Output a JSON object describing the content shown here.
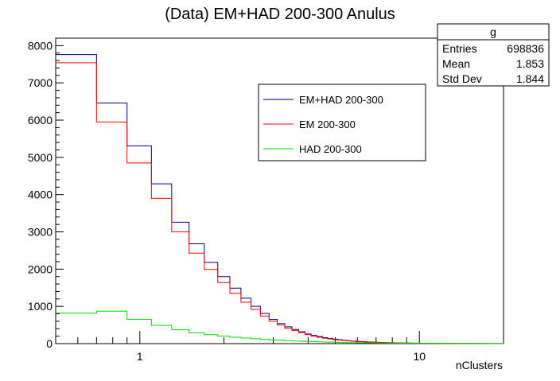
{
  "chart_data": {
    "type": "line",
    "title": "(Data) EM+HAD 200-300 Anulus",
    "xlabel": "nClusters",
    "ylabel": "",
    "x_scale": "log",
    "xlim": [
      0.5,
      20
    ],
    "ylim": [
      0,
      8200
    ],
    "y_ticks": [
      0,
      1000,
      2000,
      3000,
      4000,
      5000,
      6000,
      7000,
      8000
    ],
    "x_ticks": [
      1,
      10
    ],
    "x_tick_labels": [
      "1",
      "10"
    ],
    "bin_edges": [
      0.5,
      0.7,
      0.9,
      1.1,
      1.3,
      1.5,
      1.7,
      1.9,
      2.1,
      2.3,
      2.5,
      2.7,
      2.9,
      3.1,
      3.3,
      3.5,
      3.7,
      3.9,
      4.1,
      4.3,
      4.5,
      4.7,
      4.9,
      5.1,
      5.3,
      5.5,
      5.7,
      5.9,
      6.1,
      6.3,
      6.5,
      6.7,
      6.9,
      7.1,
      7.3,
      7.5,
      7.7,
      7.9,
      8.1,
      8.3,
      8.5,
      8.7,
      8.9,
      9.1,
      9.3,
      9.5,
      9.7,
      9.9,
      10.1,
      10.3,
      10.5,
      10.7,
      10.9,
      11.1,
      11.3,
      11.5,
      11.7,
      11.9,
      12.1,
      12.3,
      12.5,
      12.7,
      12.9,
      13.1,
      13.3,
      13.5,
      13.7,
      13.9,
      14.1,
      14.3,
      14.5,
      14.7,
      14.9,
      15.1,
      15.3,
      15.5,
      15.7,
      15.9,
      16.1,
      16.3,
      16.5,
      16.7,
      16.9,
      17.1,
      17.3,
      17.5,
      17.7,
      17.9,
      18.1,
      18.3,
      18.5,
      18.7,
      18.9,
      19.1,
      19.3,
      19.5,
      19.7,
      19.9,
      20.1
    ],
    "series": [
      {
        "name": "EM+HAD 200-300",
        "color": "#000080",
        "values": [
          7760,
          6460,
          5310,
          4290,
          3260,
          2680,
          2180,
          1800,
          1490,
          1220,
          1000,
          810,
          650,
          540,
          450,
          380,
          320,
          260,
          220,
          190,
          160,
          140,
          120,
          105,
          90,
          80,
          70,
          62,
          55,
          50,
          45,
          40,
          36,
          33,
          30,
          27,
          25,
          23,
          21,
          19,
          18,
          17,
          16,
          15,
          14,
          14,
          13,
          13,
          12,
          12,
          11,
          11,
          10,
          10,
          10,
          9,
          9,
          9,
          8,
          8,
          8,
          8,
          7,
          7,
          7,
          7,
          6,
          6,
          6,
          6,
          6,
          5,
          5,
          5,
          5,
          5,
          5,
          4,
          4,
          4,
          4,
          4,
          4,
          4,
          3,
          3,
          3,
          3,
          3,
          3,
          3,
          3,
          3,
          2,
          2,
          2,
          2,
          2
        ]
      },
      {
        "name": "EM 200-300",
        "color": "#ff0000",
        "values": [
          7540,
          5950,
          4850,
          3900,
          3000,
          2430,
          1990,
          1640,
          1350,
          1110,
          920,
          740,
          600,
          500,
          410,
          350,
          290,
          240,
          200,
          170,
          145,
          125,
          108,
          94,
          82,
          72,
          64,
          57,
          50,
          45,
          41,
          37,
          33,
          30,
          27,
          25,
          23,
          21,
          19,
          17,
          16,
          15,
          14,
          14,
          13,
          12,
          12,
          11,
          11,
          10,
          10,
          9,
          9,
          9,
          8,
          8,
          8,
          7,
          7,
          7,
          7,
          6,
          6,
          6,
          6,
          6,
          5,
          5,
          5,
          5,
          5,
          4,
          4,
          4,
          4,
          4,
          4,
          4,
          3,
          3,
          3,
          3,
          3,
          3,
          3,
          3,
          2,
          2,
          2,
          2,
          2,
          2,
          2,
          2,
          2,
          2,
          2,
          2
        ]
      },
      {
        "name": "HAD 200-300",
        "color": "#00dd00",
        "values": [
          820,
          870,
          650,
          490,
          370,
          290,
          240,
          200,
          170,
          150,
          130,
          115,
          100,
          90,
          80,
          72,
          65,
          58,
          52,
          47,
          43,
          39,
          36,
          33,
          30,
          28,
          26,
          24,
          22,
          21,
          20,
          19,
          18,
          17,
          16,
          15,
          14,
          14,
          13,
          12,
          12,
          11,
          11,
          10,
          10,
          10,
          9,
          9,
          9,
          8,
          8,
          8,
          8,
          7,
          7,
          7,
          7,
          6,
          6,
          6,
          6,
          6,
          5,
          5,
          5,
          5,
          5,
          5,
          4,
          4,
          4,
          4,
          4,
          4,
          4,
          3,
          3,
          3,
          3,
          3,
          3,
          3,
          3,
          3,
          2,
          2,
          2,
          2,
          2,
          2,
          2,
          2,
          2,
          2,
          2,
          2,
          2,
          2
        ]
      }
    ],
    "legend": {
      "placement": "top-right",
      "entries": [
        "EM+HAD 200-300",
        "EM 200-300",
        "HAD 200-300"
      ]
    },
    "stats_box": {
      "title": "g",
      "rows": [
        {
          "label": "Entries",
          "value": "698836"
        },
        {
          "label": "Mean",
          "value": "1.853"
        },
        {
          "label": "Std Dev",
          "value": "1.844"
        }
      ]
    },
    "grid": false
  }
}
